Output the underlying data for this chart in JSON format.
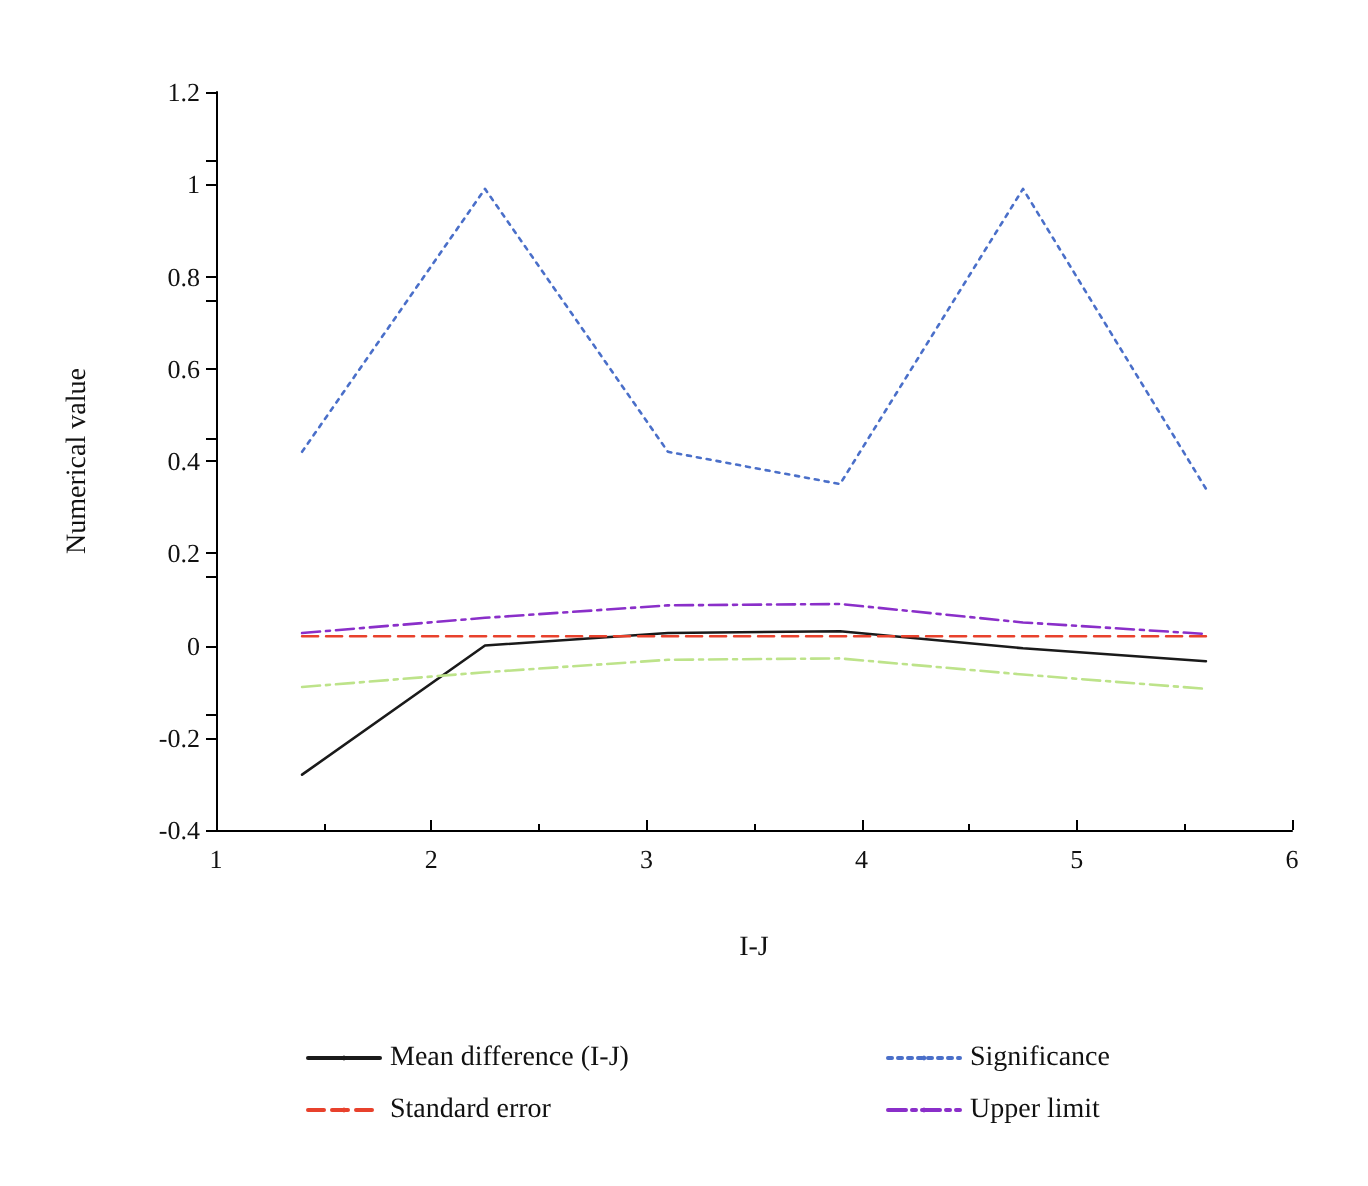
{
  "chart_data": {
    "type": "line",
    "xlabel": "I-J",
    "ylabel": "Numerical value",
    "x": [
      1.4,
      2.25,
      3.1,
      3.9,
      4.75,
      5.6
    ],
    "series": [
      {
        "name": "Mean difference (I-J)",
        "color": "#1a1a1a",
        "line_style": "solid",
        "values": [
          -0.28,
          0.0,
          0.027,
          0.031,
          -0.006,
          -0.034
        ]
      },
      {
        "name": "Significance",
        "color": "#4a6fc9",
        "line_style": "dotted",
        "values": [
          0.42,
          0.99,
          0.42,
          0.35,
          0.99,
          0.34
        ]
      },
      {
        "name": "Standard error",
        "color": "#e8412c",
        "line_style": "dashed",
        "values": [
          0.02,
          0.02,
          0.02,
          0.02,
          0.02,
          0.02
        ]
      },
      {
        "name": "Upper limit",
        "color": "#8a2fc9",
        "line_style": "dashdot",
        "values": [
          0.027,
          0.06,
          0.087,
          0.09,
          0.05,
          0.025
        ]
      },
      {
        "color": "#bde38a",
        "line_style": "dashdot",
        "values": [
          -0.09,
          -0.058,
          -0.031,
          -0.028,
          -0.063,
          -0.094
        ]
      }
    ],
    "xlim": [
      1,
      6
    ],
    "xticks": [
      1,
      2,
      3,
      4,
      5,
      6
    ],
    "ylim": [
      -0.4,
      1.2
    ],
    "yticks": [
      -0.4,
      -0.2,
      0,
      0.2,
      0.4,
      0.6,
      0.8,
      1,
      1.2
    ],
    "grid": false,
    "marker": "none",
    "legend": "bottom"
  }
}
